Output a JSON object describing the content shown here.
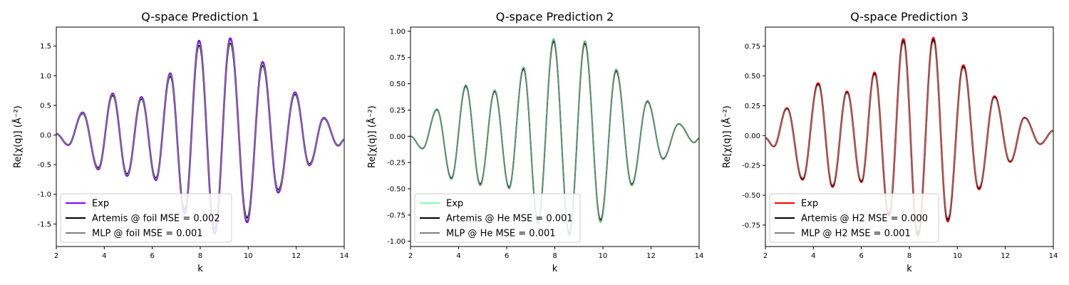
{
  "chart_data": [
    {
      "type": "line",
      "title": "Q-space Prediction 1",
      "xlabel": "k",
      "ylabel": "Re[χ(q)] (Å⁻²)",
      "xlim": [
        2,
        14
      ],
      "ylim": [
        -1.88,
        1.82
      ],
      "xticks": [
        "2",
        "4",
        "6",
        "8",
        "10",
        "12",
        "14"
      ],
      "yticks": [
        "-1.5",
        "-1.0",
        "-0.5",
        "0.0",
        "0.5",
        "1.0",
        "1.5"
      ],
      "ytick_values": [
        -1.5,
        -1.0,
        -0.5,
        0.0,
        0.5,
        1.0,
        1.5
      ],
      "legend_position": "lower-left",
      "peaks": {
        "k": [
          2.0,
          2.5,
          3.1,
          3.75,
          4.35,
          4.95,
          5.55,
          6.15,
          6.75,
          7.35,
          7.95,
          8.6,
          9.25,
          9.95,
          10.6,
          11.25,
          11.95,
          12.55,
          13.15,
          13.75,
          14.0
        ],
        "y": [
          0.02,
          -0.17,
          0.38,
          -0.58,
          0.7,
          -0.69,
          0.64,
          -0.76,
          1.04,
          -1.32,
          1.59,
          -1.66,
          1.63,
          -1.47,
          1.23,
          -0.97,
          0.72,
          -0.51,
          0.29,
          -0.18,
          -0.08
        ]
      },
      "series": [
        {
          "name": "Exp",
          "color": "#7f00ff",
          "scale": 1.0
        },
        {
          "name": "Artemis @ foil MSE = 0.002",
          "color": "#000000",
          "scale": 0.95
        },
        {
          "name": "MLP @ foil MSE = 0.001",
          "color": "#808080",
          "scale": 0.98
        }
      ]
    },
    {
      "type": "line",
      "title": "Q-space Prediction 2",
      "xlabel": "k",
      "ylabel": "Re[χ(q)] (Å⁻²)",
      "xlim": [
        2,
        14
      ],
      "ylim": [
        -1.05,
        1.04
      ],
      "xticks": [
        "2",
        "4",
        "6",
        "8",
        "10",
        "12",
        "14"
      ],
      "yticks": [
        "-1.00",
        "-0.75",
        "-0.50",
        "-0.25",
        "0.00",
        "0.25",
        "0.50",
        "0.75",
        "1.00"
      ],
      "ytick_values": [
        -1.0,
        -0.75,
        -0.5,
        -0.25,
        0.0,
        0.25,
        0.5,
        0.75,
        1.0
      ],
      "legend_position": "lower-left",
      "peaks": {
        "k": [
          2.0,
          2.5,
          3.1,
          3.7,
          4.3,
          4.9,
          5.5,
          6.1,
          6.7,
          7.3,
          7.95,
          8.6,
          9.25,
          9.9,
          10.55,
          11.2,
          11.85,
          12.5,
          13.15,
          13.8,
          14.0
        ],
        "y": [
          0.0,
          -0.12,
          0.26,
          -0.41,
          0.49,
          -0.47,
          0.44,
          -0.5,
          0.66,
          -0.84,
          0.93,
          -0.95,
          0.91,
          -0.82,
          0.64,
          -0.47,
          0.34,
          -0.22,
          0.12,
          -0.06,
          -0.02
        ]
      },
      "series": [
        {
          "name": "Exp",
          "color": "#80ffb4",
          "scale": 1.0
        },
        {
          "name": "Artemis @ He MSE = 0.001",
          "color": "#000000",
          "scale": 0.97
        },
        {
          "name": "MLP @ He MSE = 0.001",
          "color": "#808080",
          "scale": 0.99
        }
      ]
    },
    {
      "type": "line",
      "title": "Q-space Prediction 3",
      "xlabel": "k",
      "ylabel": "Re[χ(q)] (Å⁻²)",
      "xlim": [
        2,
        14
      ],
      "ylim": [
        -0.93,
        0.91
      ],
      "xticks": [
        "2",
        "4",
        "6",
        "8",
        "10",
        "12",
        "14"
      ],
      "yticks": [
        "-0.75",
        "-0.50",
        "-0.25",
        "0.00",
        "0.25",
        "0.50",
        "0.75"
      ],
      "ytick_values": [
        -0.75,
        -0.5,
        -0.25,
        0.0,
        0.25,
        0.5,
        0.75
      ],
      "legend_position": "lower-left",
      "peaks": {
        "k": [
          2.0,
          2.35,
          2.9,
          3.55,
          4.2,
          4.8,
          5.4,
          6.0,
          6.55,
          7.15,
          7.75,
          8.35,
          9.0,
          9.6,
          10.25,
          10.9,
          11.55,
          12.2,
          12.8,
          13.45,
          14.0
        ],
        "y": [
          -0.02,
          -0.09,
          0.23,
          -0.37,
          0.44,
          -0.43,
          0.37,
          -0.39,
          0.53,
          -0.67,
          0.81,
          -0.84,
          0.82,
          -0.72,
          0.59,
          -0.45,
          0.33,
          -0.22,
          0.15,
          -0.07,
          0.04
        ]
      },
      "series": [
        {
          "name": "Exp",
          "color": "#ff0000",
          "scale": 1.0
        },
        {
          "name": "Artemis @ H2 MSE = 0.000",
          "color": "#000000",
          "scale": 0.98
        },
        {
          "name": "MLP @ H2 MSE = 0.001",
          "color": "#808080",
          "scale": 0.96
        }
      ]
    }
  ]
}
